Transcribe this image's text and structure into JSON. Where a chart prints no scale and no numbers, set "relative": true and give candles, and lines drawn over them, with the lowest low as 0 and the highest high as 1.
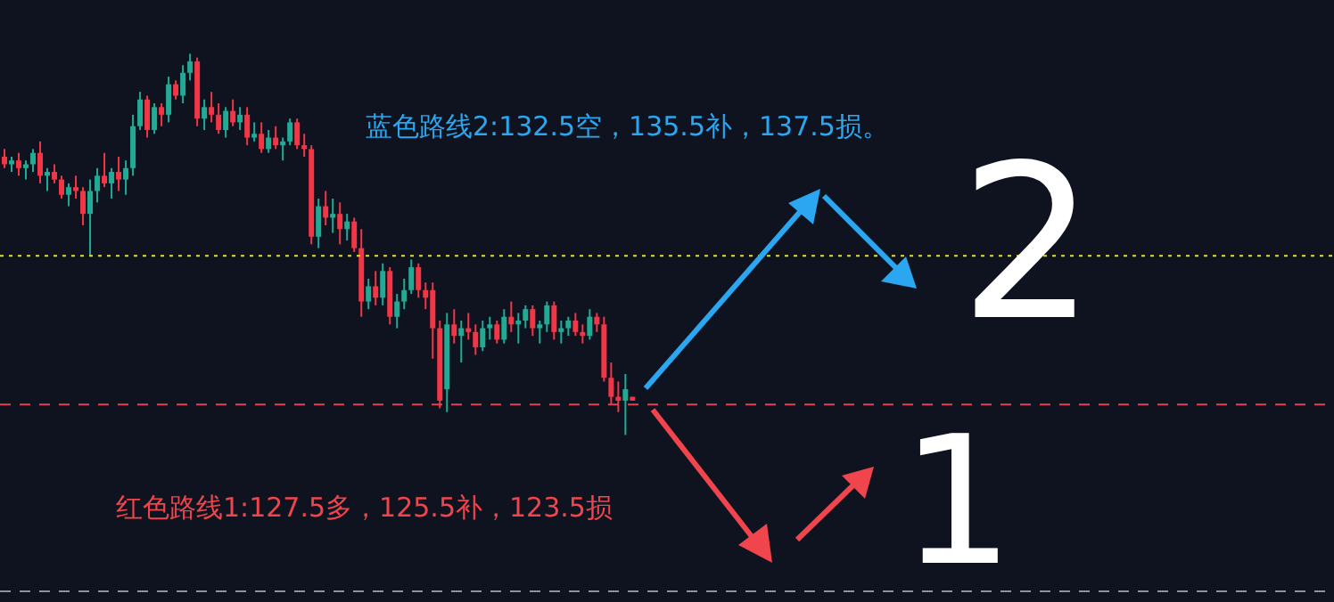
{
  "chart_data": {
    "type": "candlestick",
    "relative": true,
    "categories": [
      null,
      null,
      null,
      null,
      null,
      null,
      null,
      null,
      null,
      null,
      null,
      null,
      null,
      null,
      null,
      null,
      null,
      null,
      null,
      null,
      null,
      null,
      null,
      null,
      null,
      null,
      null,
      null,
      null,
      null,
      null,
      null,
      null,
      null,
      null,
      null,
      null,
      null,
      null,
      null,
      null,
      null,
      null,
      null,
      null,
      null,
      null,
      null,
      null,
      null,
      null,
      null,
      null,
      null,
      null,
      null,
      null,
      null,
      null,
      null,
      null,
      null,
      null,
      null,
      null,
      null,
      null,
      null,
      null,
      null,
      null,
      null,
      null,
      null,
      null,
      null,
      null,
      null,
      null,
      null,
      null,
      null,
      null,
      null,
      null,
      null,
      null,
      null,
      null
    ],
    "ohlc": [
      [
        0.73,
        0.75,
        0.7,
        0.71
      ],
      [
        0.71,
        0.73,
        0.69,
        0.72
      ],
      [
        0.72,
        0.74,
        0.68,
        0.7
      ],
      [
        0.7,
        0.72,
        0.67,
        0.71
      ],
      [
        0.71,
        0.75,
        0.69,
        0.74
      ],
      [
        0.74,
        0.77,
        0.66,
        0.68
      ],
      [
        0.68,
        0.7,
        0.64,
        0.69
      ],
      [
        0.69,
        0.71,
        0.66,
        0.67
      ],
      [
        0.67,
        0.68,
        0.62,
        0.63
      ],
      [
        0.63,
        0.66,
        0.6,
        0.65
      ],
      [
        0.65,
        0.68,
        0.62,
        0.64
      ],
      [
        0.64,
        0.65,
        0.55,
        0.58
      ],
      [
        0.58,
        0.67,
        0.47,
        0.64
      ],
      [
        0.64,
        0.7,
        0.61,
        0.68
      ],
      [
        0.68,
        0.74,
        0.65,
        0.66
      ],
      [
        0.66,
        0.7,
        0.62,
        0.69
      ],
      [
        0.69,
        0.73,
        0.64,
        0.67
      ],
      [
        0.67,
        0.72,
        0.63,
        0.7
      ],
      [
        0.7,
        0.84,
        0.68,
        0.81
      ],
      [
        0.81,
        0.9,
        0.8,
        0.88
      ],
      [
        0.88,
        0.89,
        0.78,
        0.8
      ],
      [
        0.8,
        0.87,
        0.79,
        0.86
      ],
      [
        0.86,
        0.87,
        0.81,
        0.84
      ],
      [
        0.84,
        0.94,
        0.82,
        0.92
      ],
      [
        0.92,
        0.93,
        0.88,
        0.89
      ],
      [
        0.89,
        0.97,
        0.87,
        0.95
      ],
      [
        0.95,
        1.0,
        0.93,
        0.98
      ],
      [
        0.98,
        0.99,
        0.81,
        0.83
      ],
      [
        0.83,
        0.88,
        0.8,
        0.86
      ],
      [
        0.86,
        0.9,
        0.82,
        0.84
      ],
      [
        0.84,
        0.87,
        0.79,
        0.8
      ],
      [
        0.8,
        0.86,
        0.78,
        0.85
      ],
      [
        0.85,
        0.88,
        0.81,
        0.82
      ],
      [
        0.82,
        0.86,
        0.8,
        0.84
      ],
      [
        0.84,
        0.86,
        0.76,
        0.78
      ],
      [
        0.78,
        0.82,
        0.77,
        0.79
      ],
      [
        0.79,
        0.82,
        0.74,
        0.75
      ],
      [
        0.75,
        0.8,
        0.74,
        0.78
      ],
      [
        0.78,
        0.81,
        0.75,
        0.76
      ],
      [
        0.76,
        0.78,
        0.72,
        0.77
      ],
      [
        0.77,
        0.83,
        0.76,
        0.82
      ],
      [
        0.82,
        0.83,
        0.75,
        0.76
      ],
      [
        0.76,
        0.79,
        0.73,
        0.75
      ],
      [
        0.75,
        0.76,
        0.5,
        0.52
      ],
      [
        0.52,
        0.62,
        0.49,
        0.6
      ],
      [
        0.6,
        0.64,
        0.55,
        0.57
      ],
      [
        0.57,
        0.62,
        0.53,
        0.58
      ],
      [
        0.58,
        0.61,
        0.5,
        0.54
      ],
      [
        0.54,
        0.58,
        0.51,
        0.56
      ],
      [
        0.56,
        0.57,
        0.48,
        0.49
      ],
      [
        0.49,
        0.54,
        0.31,
        0.35
      ],
      [
        0.35,
        0.41,
        0.33,
        0.39
      ],
      [
        0.39,
        0.43,
        0.34,
        0.36
      ],
      [
        0.36,
        0.45,
        0.34,
        0.43
      ],
      [
        0.43,
        0.44,
        0.29,
        0.31
      ],
      [
        0.31,
        0.37,
        0.28,
        0.35
      ],
      [
        0.35,
        0.41,
        0.33,
        0.38
      ],
      [
        0.38,
        0.46,
        0.37,
        0.44
      ],
      [
        0.44,
        0.45,
        0.36,
        0.38
      ],
      [
        0.38,
        0.4,
        0.33,
        0.36
      ],
      [
        0.38,
        0.4,
        0.2,
        0.28
      ],
      [
        0.28,
        0.3,
        0.07,
        0.09
      ],
      [
        0.12,
        0.32,
        0.06,
        0.29
      ],
      [
        0.29,
        0.33,
        0.24,
        0.26
      ],
      [
        0.26,
        0.3,
        0.19,
        0.28
      ],
      [
        0.28,
        0.32,
        0.25,
        0.27
      ],
      [
        0.27,
        0.29,
        0.21,
        0.23
      ],
      [
        0.23,
        0.3,
        0.22,
        0.28
      ],
      [
        0.28,
        0.31,
        0.25,
        0.29
      ],
      [
        0.29,
        0.3,
        0.24,
        0.25
      ],
      [
        0.25,
        0.33,
        0.24,
        0.31
      ],
      [
        0.31,
        0.35,
        0.27,
        0.29
      ],
      [
        0.29,
        0.32,
        0.24,
        0.3
      ],
      [
        0.3,
        0.34,
        0.28,
        0.33
      ],
      [
        0.33,
        0.34,
        0.26,
        0.28
      ],
      [
        0.28,
        0.3,
        0.24,
        0.29
      ],
      [
        0.29,
        0.35,
        0.27,
        0.34
      ],
      [
        0.34,
        0.35,
        0.25,
        0.27
      ],
      [
        0.27,
        0.3,
        0.24,
        0.28
      ],
      [
        0.28,
        0.31,
        0.26,
        0.3
      ],
      [
        0.3,
        0.32,
        0.26,
        0.27
      ],
      [
        0.27,
        0.29,
        0.24,
        0.26
      ],
      [
        0.26,
        0.33,
        0.25,
        0.31
      ],
      [
        0.31,
        0.32,
        0.27,
        0.29
      ],
      [
        0.29,
        0.31,
        0.14,
        0.15
      ],
      [
        0.15,
        0.19,
        0.08,
        0.1
      ],
      [
        0.1,
        0.14,
        0.06,
        0.09
      ],
      [
        0.09,
        0.16,
        0.0,
        0.12
      ],
      [
        0.1,
        0.1,
        0.09,
        0.09
      ]
    ],
    "colors": [
      "#f23645",
      "#22ab94",
      "#f23645",
      "#22ab94",
      "#22ab94",
      "#f23645",
      "#22ab94",
      "#f23645",
      "#f23645",
      "#22ab94",
      "#f23645",
      "#f23645",
      "#22ab94",
      "#22ab94",
      "#f23645",
      "#22ab94",
      "#f23645",
      "#22ab94",
      "#22ab94",
      "#22ab94",
      "#f23645",
      "#22ab94",
      "#f23645",
      "#22ab94",
      "#f23645",
      "#22ab94",
      "#22ab94",
      "#f23645",
      "#22ab94",
      "#f23645",
      "#f23645",
      "#22ab94",
      "#f23645",
      "#22ab94",
      "#f23645",
      "#22ab94",
      "#f23645",
      "#22ab94",
      "#f23645",
      "#22ab94",
      "#22ab94",
      "#f23645",
      "#f23645",
      "#f23645",
      "#22ab94",
      "#f23645",
      "#22ab94",
      "#f23645",
      "#22ab94",
      "#f23645",
      "#f23645",
      "#22ab94",
      "#f23645",
      "#22ab94",
      "#f23645",
      "#22ab94",
      "#22ab94",
      "#22ab94",
      "#f23645",
      "#f23645",
      "#f23645",
      "#f23645",
      "#22ab94",
      "#f23645",
      "#22ab94",
      "#f23645",
      "#f23645",
      "#22ab94",
      "#22ab94",
      "#f23645",
      "#22ab94",
      "#f23645",
      "#22ab94",
      "#22ab94",
      "#f23645",
      "#22ab94",
      "#22ab94",
      "#f23645",
      "#22ab94",
      "#22ab94",
      "#f23645",
      "#f23645",
      "#22ab94",
      "#f23645",
      "#f23645",
      "#f23645",
      "#f23645",
      "#22ab94",
      "#f23645"
    ],
    "ref_lines": [
      {
        "axis": "y",
        "value": 0.47,
        "color": "#e8e01a",
        "line_style": "dotted"
      },
      {
        "axis": "y",
        "value": 0.08,
        "color": "#e0434f",
        "line_style": "dashed"
      },
      {
        "axis": "y",
        "value": -0.41,
        "color": "#8a93a6",
        "line_style": "dashed"
      }
    ],
    "annotations": [
      "蓝色路线2:132.5空，135.5补，137.5损。",
      "红色路线1:127.5多，125.5补，123.5损",
      "2",
      "1"
    ]
  }
}
